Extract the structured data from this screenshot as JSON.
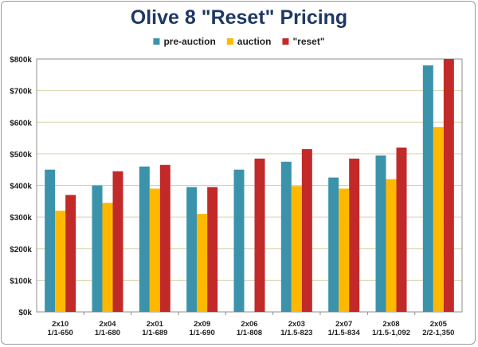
{
  "chart_data": {
    "type": "bar",
    "title": "Olive 8 \"Reset\" Pricing",
    "xlabel": "",
    "ylabel": "",
    "ylim": [
      0,
      800000
    ],
    "yticks": [
      "$0k",
      "$100k",
      "$200k",
      "$300k",
      "$400k",
      "$500k",
      "$600k",
      "$700k",
      "$800k"
    ],
    "ytick_values": [
      0,
      100000,
      200000,
      300000,
      400000,
      500000,
      600000,
      700000,
      800000
    ],
    "grid": true,
    "legend_position": "top-center",
    "categories": [
      [
        "2x10",
        "1/1-650"
      ],
      [
        "2x04",
        "1/1-680"
      ],
      [
        "2x01",
        "1/1-689"
      ],
      [
        "2x09",
        "1/1-690"
      ],
      [
        "2x06",
        "1/1-808"
      ],
      [
        "2x03",
        "1/1.5-823"
      ],
      [
        "2x07",
        "1/1.5-834"
      ],
      [
        "2x08",
        "1/1.5-1,092"
      ],
      [
        "2x05",
        "2/2-1,350"
      ]
    ],
    "series": [
      {
        "name": "pre-auction",
        "color": "#3a93ab",
        "values": [
          450000,
          400000,
          460000,
          395000,
          450000,
          475000,
          425000,
          495000,
          780000
        ]
      },
      {
        "name": "auction",
        "color": "#ffb800",
        "values": [
          320000,
          345000,
          390000,
          310000,
          null,
          398000,
          390000,
          420000,
          585000
        ]
      },
      {
        "name": "\"reset\"",
        "color": "#c22a2a",
        "values": [
          370000,
          445000,
          465000,
          395000,
          485000,
          515000,
          485000,
          520000,
          800000
        ]
      }
    ]
  }
}
